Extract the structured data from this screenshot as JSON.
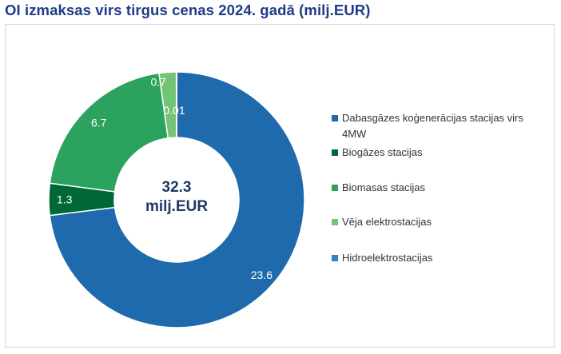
{
  "title": "OI izmaksas virs tirgus cenas 2024. gadā (milj.EUR)",
  "center": {
    "value": "32.3",
    "unit": "milj.EUR"
  },
  "chart_data": {
    "type": "pie",
    "title": "OI izmaksas virs tirgus cenas 2024. gadā (milj.EUR)",
    "total": 32.3,
    "unit": "milj.EUR",
    "legend_position": "right",
    "slices": [
      {
        "name": "Dabasgāzes koģenerācijas stacijas virs 4MW",
        "value": 23.6,
        "label": "23.6",
        "color": "#1f6aad"
      },
      {
        "name": "Biogāzes stacijas",
        "value": 1.3,
        "label": "1.3",
        "color": "#006837"
      },
      {
        "name": "Biomasas stacijas",
        "value": 6.7,
        "label": "6.7",
        "color": "#2ca25f"
      },
      {
        "name": "Vēja elektrostacijas",
        "value": 0.7,
        "label": "0.7",
        "color": "#74c476"
      },
      {
        "name": "Hidroelektrostacijas",
        "value": 0.01,
        "label": "0.01",
        "color": "#3182bd"
      }
    ]
  }
}
